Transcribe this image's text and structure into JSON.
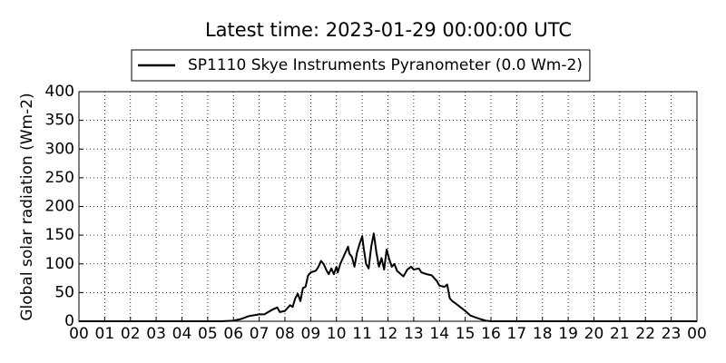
{
  "chart_data": {
    "type": "line",
    "title": "Latest time: 2023-01-29 00:00:00 UTC",
    "y_label": "Global solar radiation (Wm-2)",
    "x": [
      0,
      5.5,
      6,
      6.3,
      6.6,
      7,
      7.2,
      7.5,
      7.7,
      7.8,
      8,
      8.2,
      8.3,
      8.4,
      8.5,
      8.6,
      8.7,
      8.8,
      8.9,
      9,
      9.2,
      9.3,
      9.4,
      9.5,
      9.6,
      9.7,
      9.8,
      9.9,
      10,
      10.05,
      10.15,
      10.25,
      10.35,
      10.45,
      10.5,
      10.6,
      10.7,
      10.8,
      10.9,
      11,
      11.05,
      11.15,
      11.25,
      11.35,
      11.45,
      11.55,
      11.65,
      11.75,
      11.85,
      11.95,
      12.05,
      12.15,
      12.25,
      12.35,
      12.5,
      12.6,
      12.75,
      12.9,
      13,
      13.2,
      13.3,
      13.5,
      13.7,
      13.9,
      14,
      14.2,
      14.3,
      14.4,
      14.5,
      14.6,
      14.8,
      15,
      15.2,
      15.5,
      15.8,
      16,
      24
    ],
    "series": [
      {
        "name": "SP1110 Skye Instruments Pyranometer (0.0 Wm-2)",
        "color": "#000000",
        "values": [
          0,
          0,
          1,
          4,
          9,
          12,
          12,
          20,
          24,
          16,
          18,
          28,
          25,
          40,
          48,
          35,
          58,
          60,
          80,
          85,
          88,
          95,
          105,
          100,
          90,
          82,
          92,
          82,
          95,
          85,
          100,
          110,
          120,
          130,
          118,
          112,
          95,
          120,
          135,
          148,
          130,
          100,
          92,
          130,
          153,
          120,
          95,
          110,
          90,
          125,
          108,
          95,
          100,
          88,
          82,
          78,
          90,
          95,
          90,
          92,
          85,
          82,
          80,
          70,
          62,
          60,
          64,
          40,
          35,
          32,
          25,
          18,
          10,
          5,
          1,
          0,
          0
        ]
      }
    ],
    "xlim": [
      0,
      24
    ],
    "xticks": [
      {
        "value": 0,
        "label": "00"
      },
      {
        "value": 1,
        "label": "01"
      },
      {
        "value": 2,
        "label": "02"
      },
      {
        "value": 3,
        "label": "03"
      },
      {
        "value": 4,
        "label": "04"
      },
      {
        "value": 5,
        "label": "05"
      },
      {
        "value": 6,
        "label": "06"
      },
      {
        "value": 7,
        "label": "07"
      },
      {
        "value": 8,
        "label": "08"
      },
      {
        "value": 9,
        "label": "09"
      },
      {
        "value": 10,
        "label": "10"
      },
      {
        "value": 11,
        "label": "11"
      },
      {
        "value": 12,
        "label": "12"
      },
      {
        "value": 13,
        "label": "13"
      },
      {
        "value": 14,
        "label": "14"
      },
      {
        "value": 15,
        "label": "15"
      },
      {
        "value": 16,
        "label": "16"
      },
      {
        "value": 17,
        "label": "17"
      },
      {
        "value": 18,
        "label": "18"
      },
      {
        "value": 19,
        "label": "19"
      },
      {
        "value": 20,
        "label": "20"
      },
      {
        "value": 21,
        "label": "21"
      },
      {
        "value": 22,
        "label": "22"
      },
      {
        "value": 23,
        "label": "23"
      },
      {
        "value": 24,
        "label": "00"
      }
    ],
    "ylim": [
      0,
      400
    ],
    "yticks": [
      0,
      50,
      100,
      150,
      200,
      250,
      300,
      350,
      400
    ],
    "grid": true,
    "legend": "top"
  }
}
